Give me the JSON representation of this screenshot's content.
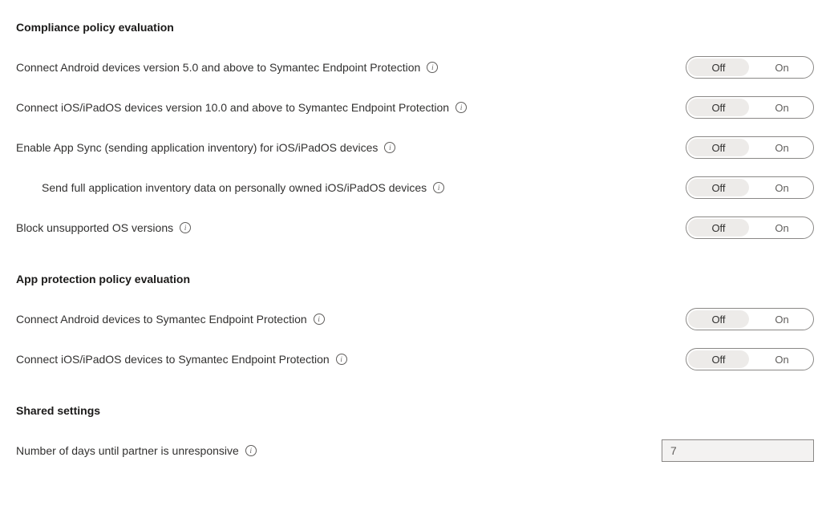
{
  "sections": {
    "compliance": {
      "heading": "Compliance policy evaluation",
      "rows": [
        {
          "label": "Connect Android devices version 5.0 and above to Symantec Endpoint Protection",
          "value": "Off",
          "indent": false
        },
        {
          "label": "Connect iOS/iPadOS devices version 10.0 and above to Symantec Endpoint Protection",
          "value": "Off",
          "indent": false
        },
        {
          "label": "Enable App Sync (sending application inventory) for iOS/iPadOS devices",
          "value": "Off",
          "indent": false
        },
        {
          "label": "Send full application inventory data on personally owned iOS/iPadOS devices",
          "value": "Off",
          "indent": true
        },
        {
          "label": "Block unsupported OS versions",
          "value": "Off",
          "indent": false
        }
      ]
    },
    "appProtection": {
      "heading": "App protection policy evaluation",
      "rows": [
        {
          "label": "Connect Android devices to Symantec Endpoint Protection",
          "value": "Off",
          "indent": false
        },
        {
          "label": "Connect iOS/iPadOS devices to Symantec Endpoint Protection",
          "value": "Off",
          "indent": false
        }
      ]
    },
    "shared": {
      "heading": "Shared settings",
      "rows": [
        {
          "label": "Number of days until partner is unresponsive",
          "value": "7",
          "type": "number"
        }
      ]
    }
  },
  "toggle": {
    "off": "Off",
    "on": "On"
  },
  "colors": {
    "text_primary": "#323130",
    "text_secondary": "#605e5c",
    "heading": "#1b1a19",
    "border": "#8a8886",
    "toggle_selected_bg": "#edebe9",
    "input_bg": "#f3f2f1",
    "background": "#ffffff"
  }
}
